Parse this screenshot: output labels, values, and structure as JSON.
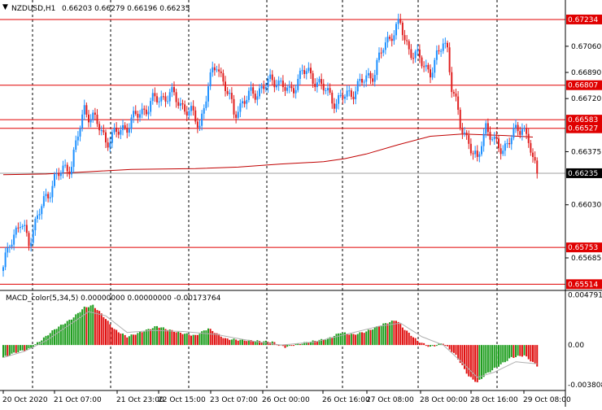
{
  "header": {
    "symbol": "NZDUSD,H1",
    "ohlc": "0.66203 0.66279 0.66196 0.66235"
  },
  "macd_header": {
    "label": "MACD_color(5,34,5) 0.00000000 0.00000000 -0.00173764"
  },
  "colors": {
    "bull": "#1e90ff",
    "bear": "#e02020",
    "hline": "#e00000",
    "grid": "#000000",
    "ma": "#c00000",
    "hist_up": "#1f9e1f",
    "hist_down": "#e01010",
    "signal": "#b0b0b0"
  },
  "chart_data": [
    {
      "type": "candlestick",
      "title": "NZDUSD,H1",
      "ylim": [
        0.655,
        0.6735
      ],
      "y_ticks": [
        "0.67060",
        "0.66890",
        "0.66720",
        "0.66375",
        "0.66030",
        "0.65685"
      ],
      "x_ticks": [
        "20 Oct 2020",
        "21 Oct 07:00",
        "21 Oct 23:00",
        "22 Oct 15:00",
        "23 Oct 07:00",
        "26 Oct 00:00",
        "26 Oct 16:00",
        "27 Oct 08:00",
        "28 Oct 00:00",
        "28 Oct 16:00",
        "29 Oct 08:00"
      ],
      "levels": [
        "0.67234",
        "0.66807",
        "0.66583",
        "0.66527",
        "0.65753",
        "0.65514"
      ],
      "current_price": "0.66235",
      "ma_path": [
        [
          0,
          0.66225
        ],
        [
          20,
          0.6623
        ],
        [
          40,
          0.66245
        ],
        [
          60,
          0.6626
        ],
        [
          90,
          0.66265
        ],
        [
          110,
          0.66275
        ],
        [
          130,
          0.66295
        ],
        [
          150,
          0.6631
        ],
        [
          160,
          0.6633
        ],
        [
          170,
          0.6636
        ],
        [
          185,
          0.6642
        ],
        [
          200,
          0.66475
        ],
        [
          215,
          0.6649
        ],
        [
          235,
          0.6648
        ],
        [
          248,
          0.6647
        ]
      ],
      "anchors": [
        [
          0,
          0.656
        ],
        [
          3,
          0.658
        ],
        [
          8,
          0.659
        ],
        [
          12,
          0.658
        ],
        [
          16,
          0.6595
        ],
        [
          24,
          0.662
        ],
        [
          32,
          0.663
        ],
        [
          38,
          0.6665
        ],
        [
          42,
          0.666
        ],
        [
          48,
          0.6645
        ],
        [
          54,
          0.665
        ],
        [
          62,
          0.666
        ],
        [
          70,
          0.667
        ],
        [
          78,
          0.6675
        ],
        [
          86,
          0.6665
        ],
        [
          92,
          0.6655
        ],
        [
          96,
          0.668
        ],
        [
          100,
          0.6695
        ],
        [
          104,
          0.668
        ],
        [
          108,
          0.6662
        ],
        [
          112,
          0.667
        ],
        [
          120,
          0.6678
        ],
        [
          128,
          0.6685
        ],
        [
          134,
          0.6675
        ],
        [
          140,
          0.669
        ],
        [
          146,
          0.6685
        ],
        [
          152,
          0.6675
        ],
        [
          156,
          0.667
        ],
        [
          162,
          0.6675
        ],
        [
          166,
          0.668
        ],
        [
          170,
          0.6685
        ],
        [
          174,
          0.669
        ],
        [
          178,
          0.6705
        ],
        [
          182,
          0.6715
        ],
        [
          186,
          0.672
        ],
        [
          188,
          0.671
        ],
        [
          190,
          0.6705
        ],
        [
          196,
          0.6695
        ],
        [
          200,
          0.669
        ],
        [
          204,
          0.67
        ],
        [
          206,
          0.671
        ],
        [
          208,
          0.6705
        ],
        [
          210,
          0.668
        ],
        [
          214,
          0.6655
        ],
        [
          218,
          0.6645
        ],
        [
          220,
          0.6635
        ],
        [
          222,
          0.663
        ],
        [
          224,
          0.6645
        ],
        [
          226,
          0.6655
        ],
        [
          230,
          0.6642
        ],
        [
          234,
          0.664
        ],
        [
          240,
          0.665
        ],
        [
          243,
          0.6655
        ],
        [
          246,
          0.6645
        ],
        [
          248,
          0.663
        ],
        [
          250,
          0.66235
        ]
      ],
      "macd_ylim": [
        -0.0042,
        0.005
      ],
      "macd_ticks": [
        "0.0047914",
        "0.00",
        "-0.003808"
      ],
      "macd_hist_anchors": [
        [
          0,
          -0.0012
        ],
        [
          6,
          -0.0007
        ],
        [
          12,
          -0.0004
        ],
        [
          18,
          0.0005
        ],
        [
          24,
          0.0015
        ],
        [
          32,
          0.0025
        ],
        [
          38,
          0.0036
        ],
        [
          42,
          0.0038
        ],
        [
          46,
          0.003
        ],
        [
          52,
          0.0015
        ],
        [
          58,
          0.0008
        ],
        [
          64,
          0.0012
        ],
        [
          72,
          0.0018
        ],
        [
          82,
          0.0012
        ],
        [
          90,
          0.0009
        ],
        [
          96,
          0.0016
        ],
        [
          104,
          0.0006
        ],
        [
          110,
          0.0005
        ],
        [
          118,
          0.0004
        ],
        [
          126,
          0.0003
        ],
        [
          132,
          -0.0002
        ],
        [
          138,
          0.0001
        ],
        [
          146,
          0.0004
        ],
        [
          152,
          0.0006
        ],
        [
          158,
          0.0012
        ],
        [
          164,
          0.001
        ],
        [
          170,
          0.0013
        ],
        [
          178,
          0.002
        ],
        [
          184,
          0.0024
        ],
        [
          188,
          0.0015
        ],
        [
          194,
          0.0004
        ],
        [
          200,
          -0.0002
        ],
        [
          206,
          0.0002
        ],
        [
          212,
          -0.001
        ],
        [
          218,
          -0.003
        ],
        [
          222,
          -0.0036
        ],
        [
          226,
          -0.0028
        ],
        [
          232,
          -0.002
        ],
        [
          238,
          -0.0012
        ],
        [
          244,
          -0.001
        ],
        [
          250,
          -0.002
        ]
      ],
      "macd_signal_anchors": [
        [
          0,
          -0.0012
        ],
        [
          10,
          -0.0006
        ],
        [
          20,
          0.0004
        ],
        [
          30,
          0.0018
        ],
        [
          40,
          0.0032
        ],
        [
          48,
          0.0028
        ],
        [
          58,
          0.0012
        ],
        [
          70,
          0.0014
        ],
        [
          84,
          0.0013
        ],
        [
          100,
          0.001
        ],
        [
          116,
          0.0004
        ],
        [
          130,
          0.0
        ],
        [
          146,
          0.0003
        ],
        [
          160,
          0.001
        ],
        [
          176,
          0.0018
        ],
        [
          186,
          0.0021
        ],
        [
          196,
          0.0008
        ],
        [
          206,
          0.0
        ],
        [
          214,
          -0.0015
        ],
        [
          222,
          -0.0031
        ],
        [
          230,
          -0.0026
        ],
        [
          240,
          -0.0016
        ],
        [
          250,
          -0.0018
        ]
      ]
    }
  ]
}
